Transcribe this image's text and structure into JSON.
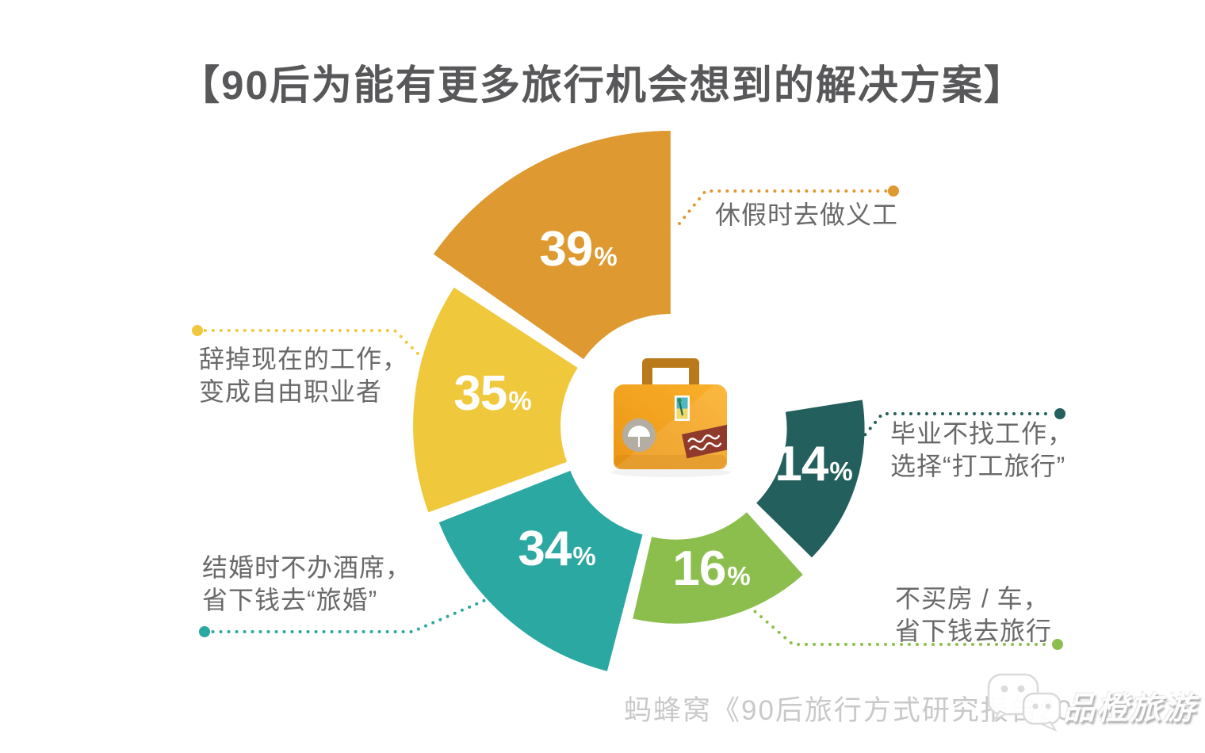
{
  "page": {
    "background": "#FFFFFF"
  },
  "title": {
    "text": "【90后为能有更多旅行机会想到的解决方案】",
    "color": "#58585A"
  },
  "chart_data": {
    "type": "pie",
    "variant": "rose-donut-petals",
    "unit": "%",
    "title": "90后为能有更多旅行机会想到的解决方案",
    "note": "multi-select survey results; petals share equal ~55° angles, outer radius encodes value; values sum to 138%",
    "legend_position": "callout-labels-around-donut",
    "center_icon": "suitcase-icon",
    "series": [
      {
        "name": "休假时去做义工",
        "value": 39,
        "color": "#DE9930"
      },
      {
        "name": "辞掉现在的工作，变成自由职业者",
        "value": 35,
        "color": "#F0C83C"
      },
      {
        "name": "结婚时不办酒席，省下钱去“旅婚”",
        "value": 34,
        "color": "#2BA8A1"
      },
      {
        "name": "不买房 / 车，省下钱去旅行",
        "value": 16,
        "color": "#8CBE4E"
      },
      {
        "name": "毕业不找工作，选择“打工旅行”",
        "value": 14,
        "color": "#235F5C"
      }
    ]
  },
  "callouts": {
    "volunteer": {
      "line1": "休假时去做义工",
      "line2": ""
    },
    "quit_job": {
      "line1": "辞掉现在的工作，",
      "line2": "变成自由职业者"
    },
    "travel_wedding": {
      "line1": "结婚时不办酒席，",
      "line2": "省下钱去“旅婚”"
    },
    "working_travel": {
      "line1": "毕业不找工作，",
      "line2": "选择“打工旅行”"
    },
    "no_house_car": {
      "line1": "不买房 / 车，",
      "line2": "省下钱去旅行"
    }
  },
  "labels_color": "#696969",
  "footer": {
    "source_text": "蚂蜂窝《90后旅行方式研究报告20",
    "color": "#C9C9C9"
  },
  "watermark": {
    "text": "品橙旅游",
    "logo": "wechat-bubbles-icon"
  }
}
